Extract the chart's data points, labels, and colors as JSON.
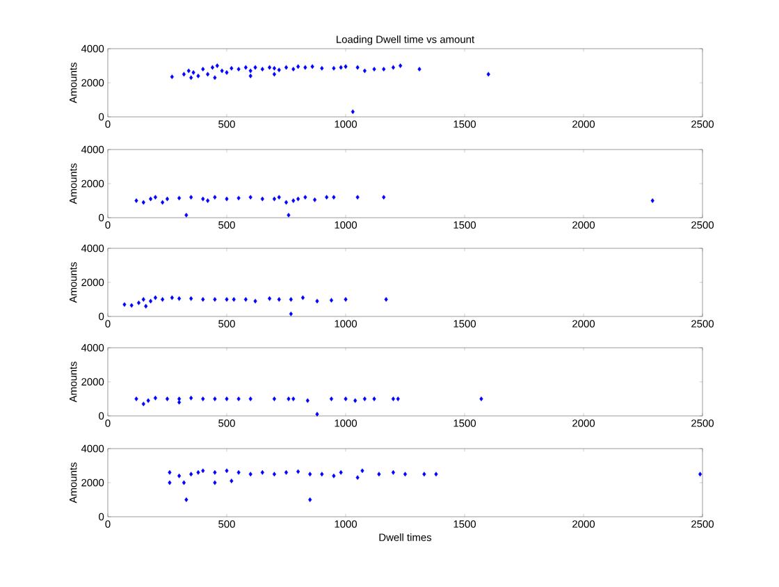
{
  "chart_data": [
    {
      "type": "scatter",
      "title": "Loading Dwell time vs amount",
      "ylabel": "Amounts",
      "xlim": [
        0,
        2500
      ],
      "ylim": [
        0,
        4000
      ],
      "xticks": [
        0,
        500,
        1000,
        1500,
        2000,
        2500
      ],
      "yticks": [
        0,
        2000,
        4000
      ],
      "marker": "diamond",
      "grid": false,
      "series": [
        {
          "color": "#0000ff",
          "x": [
            270,
            320,
            340,
            350,
            360,
            380,
            400,
            420,
            440,
            450,
            460,
            480,
            500,
            520,
            550,
            580,
            600,
            600,
            620,
            650,
            680,
            700,
            700,
            720,
            750,
            780,
            800,
            830,
            860,
            900,
            950,
            980,
            1000,
            1030,
            1050,
            1080,
            1120,
            1160,
            1200,
            1230,
            1310,
            1600
          ],
          "values": [
            2350,
            2500,
            2700,
            2300,
            2600,
            2400,
            2800,
            2500,
            2900,
            2300,
            3000,
            2700,
            2600,
            2850,
            2800,
            2900,
            2700,
            2400,
            2900,
            2800,
            2900,
            2850,
            2500,
            2750,
            2900,
            2800,
            2950,
            2900,
            2950,
            2850,
            2850,
            2900,
            2950,
            300,
            2900,
            2700,
            2800,
            2800,
            2900,
            3000,
            2800,
            2500
          ]
        }
      ]
    },
    {
      "type": "scatter",
      "ylabel": "Amounts",
      "xlim": [
        0,
        2500
      ],
      "ylim": [
        0,
        4000
      ],
      "xticks": [
        0,
        500,
        1000,
        1500,
        2000,
        2500
      ],
      "yticks": [
        0,
        2000,
        4000
      ],
      "marker": "diamond",
      "grid": false,
      "series": [
        {
          "color": "#0000ff",
          "x": [
            120,
            150,
            180,
            200,
            230,
            250,
            300,
            330,
            350,
            400,
            420,
            450,
            500,
            550,
            600,
            650,
            700,
            720,
            750,
            760,
            780,
            800,
            830,
            870,
            920,
            950,
            1050,
            1160,
            2290
          ],
          "values": [
            1000,
            900,
            1100,
            1200,
            900,
            1100,
            1150,
            150,
            1200,
            1100,
            1000,
            1200,
            1100,
            1150,
            1200,
            1100,
            1100,
            1200,
            900,
            150,
            1000,
            1100,
            1200,
            1050,
            1200,
            1200,
            1200,
            1200,
            1000
          ]
        }
      ]
    },
    {
      "type": "scatter",
      "ylabel": "Amounts",
      "xlim": [
        0,
        2500
      ],
      "ylim": [
        0,
        4000
      ],
      "xticks": [
        0,
        500,
        1000,
        1500,
        2000,
        2500
      ],
      "yticks": [
        0,
        2000,
        4000
      ],
      "marker": "diamond",
      "grid": false,
      "series": [
        {
          "color": "#0000ff",
          "x": [
            70,
            100,
            130,
            150,
            160,
            180,
            200,
            230,
            270,
            300,
            350,
            400,
            450,
            500,
            530,
            580,
            620,
            680,
            720,
            770,
            770,
            820,
            880,
            940,
            1000,
            1170
          ],
          "values": [
            700,
            650,
            800,
            1000,
            600,
            900,
            1100,
            1000,
            1100,
            1050,
            1050,
            1000,
            1000,
            1000,
            1000,
            1000,
            900,
            1050,
            1000,
            1000,
            150,
            1100,
            900,
            950,
            1000,
            1000
          ]
        }
      ]
    },
    {
      "type": "scatter",
      "ylabel": "Amounts",
      "xlim": [
        0,
        2500
      ],
      "ylim": [
        0,
        4000
      ],
      "xticks": [
        0,
        500,
        1000,
        1500,
        2000,
        2500
      ],
      "yticks": [
        0,
        2000,
        4000
      ],
      "marker": "diamond",
      "grid": false,
      "series": [
        {
          "color": "#0000ff",
          "x": [
            120,
            150,
            170,
            200,
            250,
            300,
            300,
            350,
            400,
            450,
            500,
            550,
            600,
            700,
            760,
            780,
            840,
            880,
            940,
            1000,
            1040,
            1080,
            1120,
            1200,
            1220,
            1570
          ],
          "values": [
            1000,
            700,
            900,
            1050,
            1000,
            800,
            1000,
            1050,
            1000,
            1000,
            1000,
            1000,
            1000,
            1000,
            1000,
            1000,
            900,
            100,
            1000,
            1000,
            900,
            1000,
            1000,
            1000,
            1000,
            1000
          ]
        }
      ]
    },
    {
      "type": "scatter",
      "ylabel": "Amounts",
      "xlabel": "Dwell times",
      "xlim": [
        0,
        2500
      ],
      "ylim": [
        0,
        4000
      ],
      "xticks": [
        0,
        500,
        1000,
        1500,
        2000,
        2500
      ],
      "yticks": [
        0,
        2000,
        4000
      ],
      "marker": "diamond",
      "grid": false,
      "series": [
        {
          "color": "#0000ff",
          "x": [
            260,
            260,
            300,
            320,
            330,
            350,
            380,
            400,
            450,
            450,
            500,
            520,
            550,
            600,
            650,
            700,
            750,
            800,
            850,
            850,
            900,
            950,
            980,
            1050,
            1070,
            1140,
            1200,
            1250,
            1330,
            1380,
            2490
          ],
          "values": [
            2600,
            2000,
            2400,
            2000,
            1000,
            2500,
            2600,
            2700,
            2600,
            2000,
            2700,
            2100,
            2600,
            2500,
            2600,
            2500,
            2600,
            2650,
            1000,
            2500,
            2500,
            2400,
            2600,
            2300,
            2700,
            2500,
            2600,
            2500,
            2500,
            2500,
            2500
          ]
        }
      ]
    }
  ]
}
